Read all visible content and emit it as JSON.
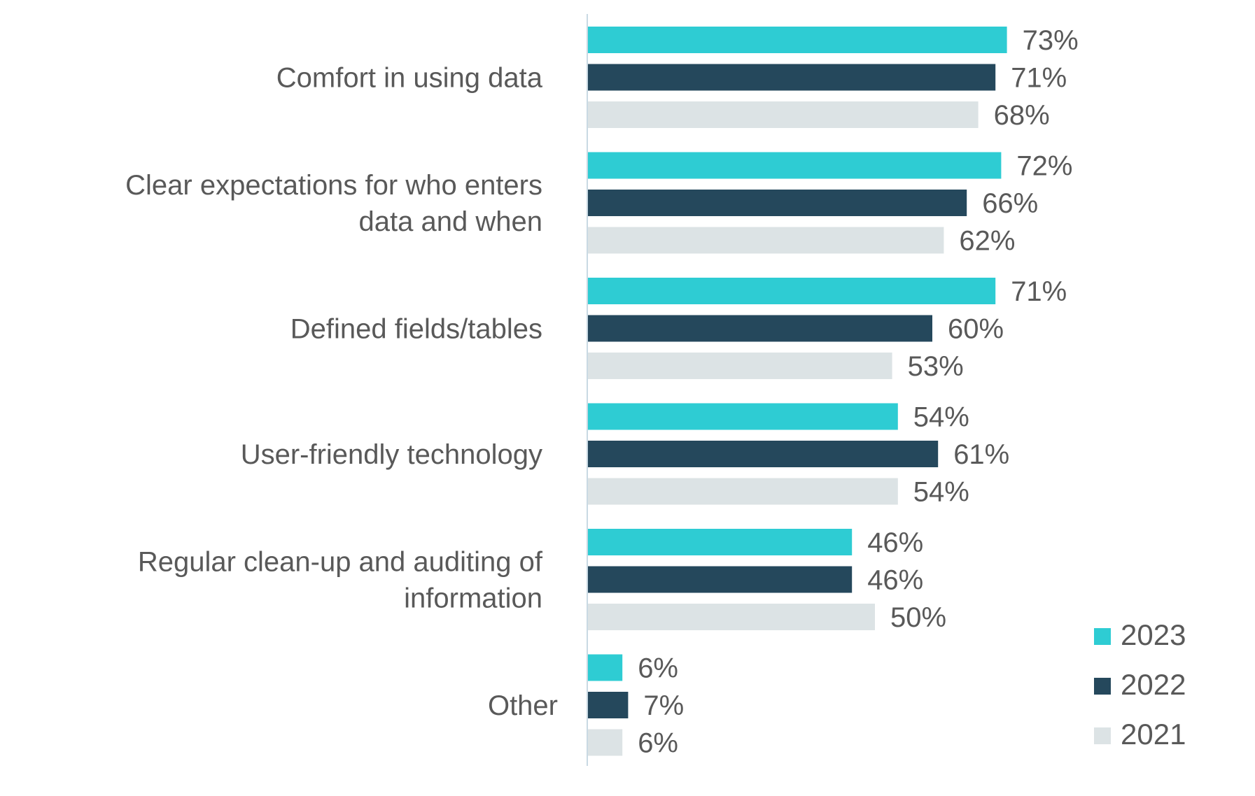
{
  "chart_data": {
    "type": "bar",
    "orientation": "horizontal",
    "categories": [
      [
        "Comfort in using data"
      ],
      [
        "Clear expectations for who enters",
        "data and when"
      ],
      [
        "Defined fields/tables"
      ],
      [
        "User-friendly technology"
      ],
      [
        "Regular clean-up and auditing of",
        "information"
      ],
      [
        "Other"
      ]
    ],
    "series": [
      {
        "name": "2023",
        "color": "#2ECCD3",
        "values": [
          73,
          72,
          71,
          54,
          46,
          6
        ]
      },
      {
        "name": "2022",
        "color": "#25485C",
        "values": [
          71,
          66,
          60,
          61,
          46,
          7
        ]
      },
      {
        "name": "2021",
        "color": "#DCE3E5",
        "values": [
          68,
          62,
          53,
          54,
          50,
          6
        ]
      }
    ],
    "value_suffix": "%",
    "xlim": [
      0,
      100
    ],
    "grid": false,
    "legend_position": "bottom-right",
    "axis_color": "#C9D9E3"
  }
}
